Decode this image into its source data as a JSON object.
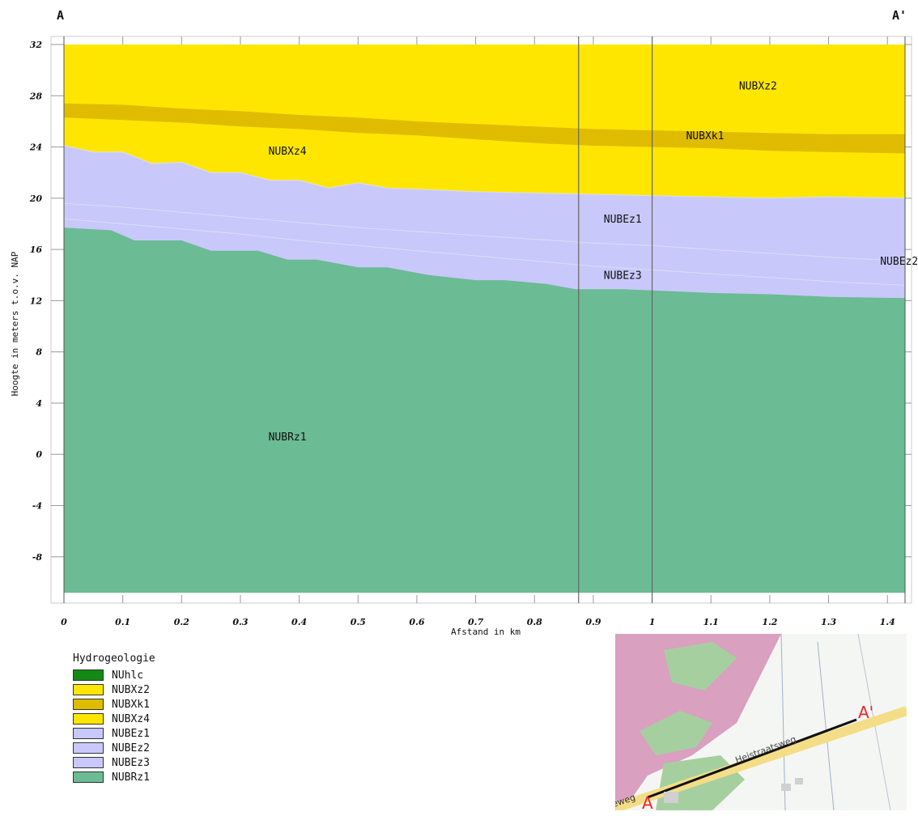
{
  "chart_data": {
    "type": "area",
    "title": "",
    "endpoint_left": "A",
    "endpoint_right": "A'",
    "ylabel": "Hoogte in meters t.o.v. NAP",
    "xlabel": "Afstand in km",
    "xlim": [
      0,
      1.43
    ],
    "ylim": [
      -11,
      32
    ],
    "xticks": [
      "0",
      "0.1",
      "0.2",
      "0.3",
      "0.4",
      "0.5",
      "0.6",
      "0.7",
      "0.8",
      "0.9",
      "1",
      "1.1",
      "1.2",
      "1.3",
      "1.4"
    ],
    "yticks": [
      "32",
      "28",
      "24",
      "20",
      "16",
      "12",
      "8",
      "4",
      "0",
      "-4",
      "-8"
    ],
    "vertical_lines": [
      0.875,
      1.0
    ],
    "bottom": -10.8,
    "layers": [
      {
        "name": "NUBXz2",
        "color": "#ffe600",
        "x": [
          0,
          1.43
        ],
        "top": [
          32,
          32
        ]
      },
      {
        "name": "NUBXk1",
        "color": "#e0bc00",
        "x": [
          0,
          0.1,
          0.2,
          0.3,
          0.4,
          0.5,
          0.6,
          0.7,
          0.8,
          0.9,
          1.0,
          1.1,
          1.2,
          1.3,
          1.43
        ],
        "top": [
          27.4,
          27.3,
          27.0,
          26.8,
          26.5,
          26.3,
          26.0,
          25.8,
          25.6,
          25.4,
          25.3,
          25.2,
          25.1,
          25.0,
          25.0
        ]
      },
      {
        "name": "NUBXz4",
        "color": "#ffe600",
        "x": [
          0,
          0.1,
          0.2,
          0.3,
          0.4,
          0.5,
          0.6,
          0.7,
          0.8,
          0.9,
          1.0,
          1.1,
          1.2,
          1.3,
          1.43
        ],
        "top": [
          26.3,
          26.1,
          25.9,
          25.6,
          25.4,
          25.1,
          24.9,
          24.6,
          24.3,
          24.1,
          24.0,
          23.9,
          23.7,
          23.6,
          23.5
        ]
      },
      {
        "name": "NUBEz1",
        "color": "#c8c8fa",
        "x": [
          0,
          0.05,
          0.1,
          0.15,
          0.2,
          0.25,
          0.3,
          0.35,
          0.4,
          0.45,
          0.5,
          0.55,
          0.6,
          0.7,
          0.8,
          0.9,
          1.0,
          1.1,
          1.2,
          1.3,
          1.43
        ],
        "top": [
          24.1,
          23.6,
          23.6,
          22.7,
          22.8,
          22.0,
          22.0,
          21.4,
          21.4,
          20.8,
          21.2,
          20.8,
          20.7,
          20.5,
          20.4,
          20.3,
          20.2,
          20.1,
          20.0,
          20.1,
          20.0
        ]
      },
      {
        "name": "NUBEz2",
        "color": "#c8c8fa",
        "x": [
          0,
          0.1,
          0.2,
          0.3,
          0.4,
          0.5,
          0.6,
          0.7,
          0.8,
          0.9,
          1.0,
          1.1,
          1.2,
          1.3,
          1.43
        ],
        "top": [
          19.6,
          19.3,
          18.9,
          18.5,
          18.1,
          17.7,
          17.4,
          17.1,
          16.8,
          16.5,
          16.3,
          16.0,
          15.7,
          15.4,
          15.1
        ]
      },
      {
        "name": "NUBEz3",
        "color": "#c8c8fa",
        "x": [
          0,
          0.1,
          0.2,
          0.3,
          0.4,
          0.5,
          0.6,
          0.7,
          0.8,
          0.9,
          1.0,
          1.1,
          1.2,
          1.3,
          1.43
        ],
        "top": [
          18.4,
          18.0,
          17.6,
          17.2,
          16.7,
          16.3,
          15.9,
          15.5,
          15.1,
          14.7,
          14.4,
          14.1,
          13.8,
          13.5,
          13.2
        ]
      },
      {
        "name": "NUBRz1",
        "color": "#6bbb94",
        "x": [
          0,
          0.08,
          0.12,
          0.2,
          0.25,
          0.33,
          0.38,
          0.43,
          0.5,
          0.55,
          0.62,
          0.7,
          0.75,
          0.82,
          0.87,
          0.95,
          1.0,
          1.1,
          1.2,
          1.3,
          1.43
        ],
        "top": [
          17.7,
          17.5,
          16.7,
          16.7,
          15.9,
          15.9,
          15.2,
          15.2,
          14.6,
          14.6,
          14.0,
          13.6,
          13.6,
          13.3,
          12.9,
          12.9,
          12.8,
          12.6,
          12.5,
          12.3,
          12.2
        ]
      }
    ],
    "labels": [
      {
        "text": "NUBXz2",
        "x": 1.18,
        "y": 28.5
      },
      {
        "text": "NUBXk1",
        "x": 1.09,
        "y": 24.6
      },
      {
        "text": "NUBXz4",
        "x": 0.38,
        "y": 23.4
      },
      {
        "text": "NUBEz1",
        "x": 0.95,
        "y": 18.1
      },
      {
        "text": "NUBEz2",
        "x": 1.42,
        "y": 14.8
      },
      {
        "text": "NUBEz3",
        "x": 0.95,
        "y": 13.7
      },
      {
        "text": "NUBRz1",
        "x": 0.38,
        "y": 1.1
      }
    ]
  },
  "legend": {
    "title": "Hydrogeologie",
    "items": [
      {
        "label": "NUhlc",
        "color": "#138a13"
      },
      {
        "label": "NUBXz2",
        "color": "#ffe600"
      },
      {
        "label": "NUBXk1",
        "color": "#e0bc00"
      },
      {
        "label": "NUBXz4",
        "color": "#ffe600"
      },
      {
        "label": "NUBEz1",
        "color": "#c8c8fa"
      },
      {
        "label": "NUBEz2",
        "color": "#c8c8fa"
      },
      {
        "label": "NUBEz3",
        "color": "#c8c8fa"
      },
      {
        "label": "NUBRz1",
        "color": "#6bbb94"
      }
    ]
  },
  "map": {
    "label_a": "A",
    "label_a_prime": "A'",
    "road_name": "Heistraatsweg",
    "road_fragment": "eweg",
    "colors": {
      "nature": "#d9a0c0",
      "forest": "#a6cfa0",
      "road": "#f3de87",
      "section": "#111111",
      "marker": "#e8262a"
    }
  }
}
